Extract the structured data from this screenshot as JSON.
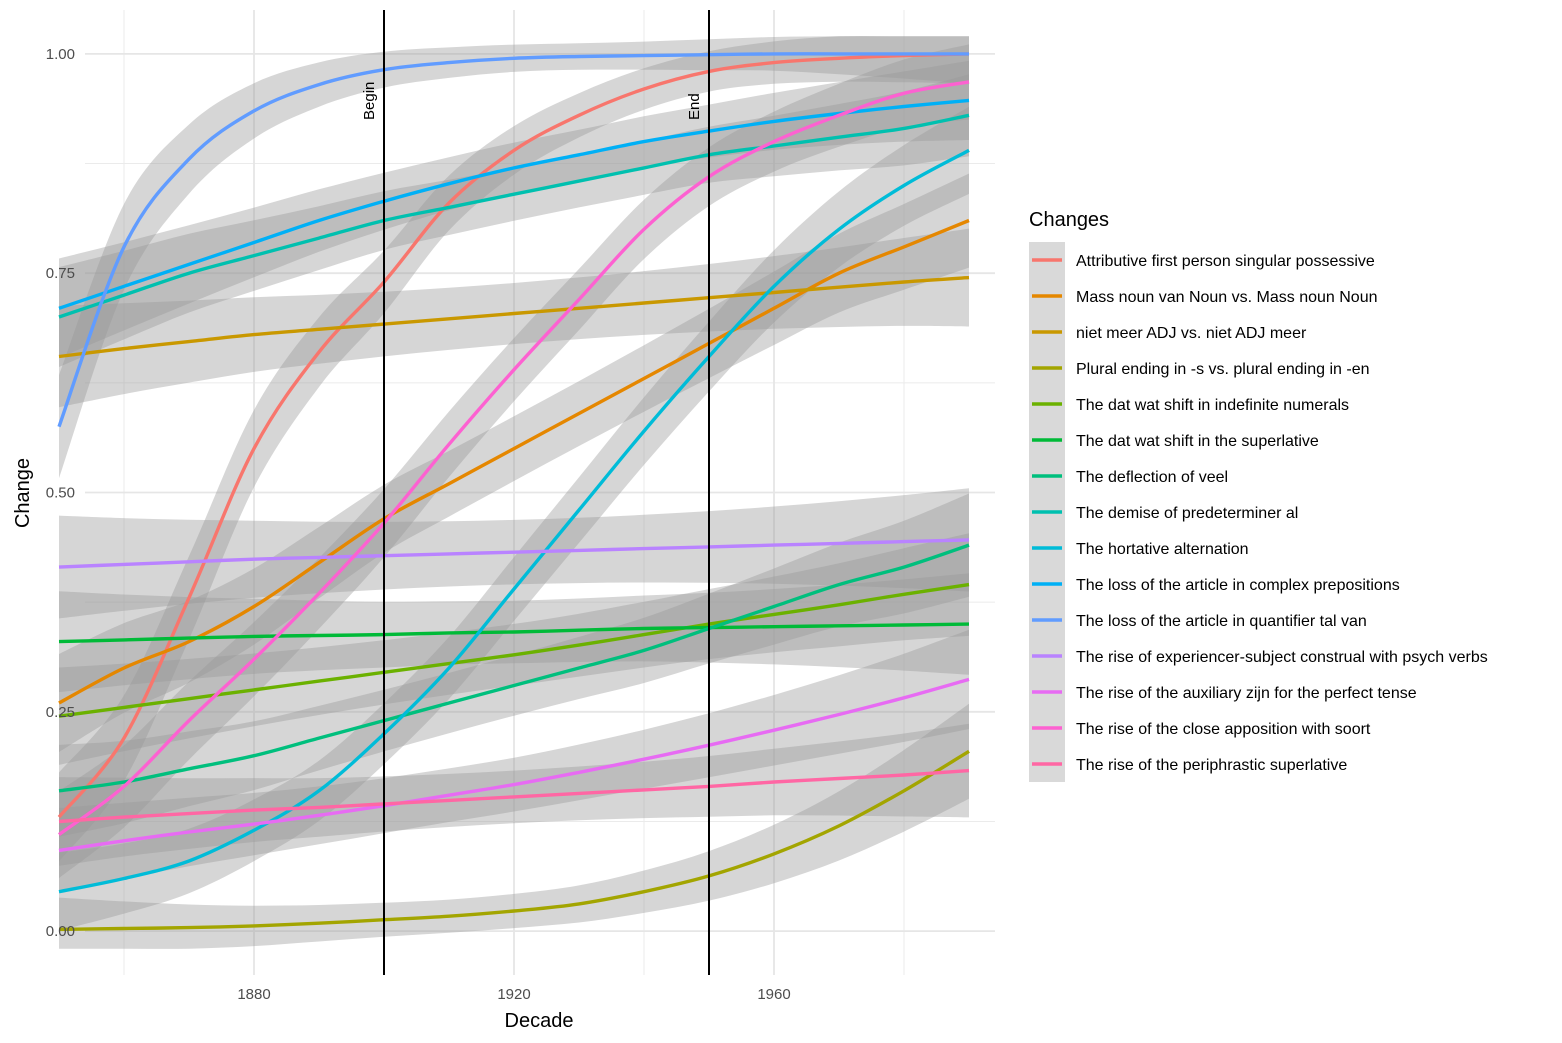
{
  "chart_data": {
    "type": "line",
    "xlabel": "Decade",
    "ylabel": "Change",
    "xlim": [
      1854,
      1994
    ],
    "ylim": [
      -0.05,
      1.05
    ],
    "x_ticks": [
      1880,
      1920,
      1960
    ],
    "x_tick_labels": [
      "1880",
      "1920",
      "1960"
    ],
    "y_ticks": [
      0,
      0.25,
      0.5,
      0.75,
      1.0
    ],
    "y_tick_labels": [
      "0.00",
      "0.25",
      "0.50",
      "0.75",
      "1.00"
    ],
    "grid": true,
    "legend_title": "Changes",
    "legend_position": "right",
    "vlines": [
      {
        "x": 1900,
        "label": "Begin"
      },
      {
        "x": 1950,
        "label": "End"
      }
    ],
    "x": [
      1850,
      1860,
      1870,
      1880,
      1890,
      1900,
      1910,
      1920,
      1930,
      1940,
      1950,
      1960,
      1970,
      1980,
      1990
    ],
    "series": [
      {
        "name": "Attributive first person singular possessive",
        "color": "#F8766D",
        "values": [
          0.13,
          0.22,
          0.38,
          0.55,
          0.66,
          0.74,
          0.83,
          0.89,
          0.93,
          0.96,
          0.98,
          0.99,
          0.995,
          0.998,
          1.0
        ]
      },
      {
        "name": "Mass noun van Noun vs. Mass noun Noun",
        "color": "#E58700",
        "values": [
          0.26,
          0.3,
          0.33,
          0.37,
          0.42,
          0.47,
          0.51,
          0.55,
          0.59,
          0.63,
          0.67,
          0.71,
          0.75,
          0.78,
          0.81
        ]
      },
      {
        "name": "niet meer ADJ vs. niet ADJ meer",
        "color": "#C99800",
        "values": [
          0.655,
          0.664,
          0.672,
          0.68,
          0.686,
          0.692,
          0.698,
          0.704,
          0.71,
          0.716,
          0.722,
          0.728,
          0.734,
          0.74,
          0.745
        ]
      },
      {
        "name": "Plural ending in -s vs. plural ending in -en",
        "color": "#A3A500",
        "values": [
          0.002,
          0.003,
          0.004,
          0.006,
          0.009,
          0.013,
          0.017,
          0.023,
          0.031,
          0.045,
          0.063,
          0.088,
          0.12,
          0.16,
          0.205
        ]
      },
      {
        "name": "The dat wat shift in indefinite numerals",
        "color": "#6BB100",
        "values": [
          0.245,
          0.255,
          0.265,
          0.275,
          0.285,
          0.295,
          0.305,
          0.315,
          0.326,
          0.338,
          0.35,
          0.361,
          0.372,
          0.384,
          0.395
        ]
      },
      {
        "name": "The dat wat shift in the superlative",
        "color": "#00BA38",
        "values": [
          0.33,
          0.332,
          0.334,
          0.336,
          0.337,
          0.338,
          0.34,
          0.341,
          0.343,
          0.345,
          0.346,
          0.347,
          0.348,
          0.349,
          0.35
        ]
      },
      {
        "name": "The deflection of veel",
        "color": "#00BF7D",
        "values": [
          0.16,
          0.17,
          0.185,
          0.2,
          0.22,
          0.24,
          0.26,
          0.28,
          0.3,
          0.32,
          0.345,
          0.37,
          0.395,
          0.415,
          0.44
        ]
      },
      {
        "name": "The demise of predeterminer al",
        "color": "#00C0AF",
        "values": [
          0.7,
          0.725,
          0.75,
          0.77,
          0.79,
          0.81,
          0.825,
          0.84,
          0.855,
          0.87,
          0.885,
          0.895,
          0.905,
          0.915,
          0.93
        ]
      },
      {
        "name": "The hortative alternation",
        "color": "#00BCD8",
        "values": [
          0.045,
          0.06,
          0.08,
          0.115,
          0.16,
          0.225,
          0.3,
          0.39,
          0.48,
          0.57,
          0.655,
          0.735,
          0.8,
          0.85,
          0.89
        ]
      },
      {
        "name": "The loss of the article in complex prepositions",
        "color": "#00B0F6",
        "values": [
          0.71,
          0.735,
          0.76,
          0.785,
          0.81,
          0.832,
          0.852,
          0.87,
          0.885,
          0.9,
          0.912,
          0.923,
          0.932,
          0.94,
          0.947
        ]
      },
      {
        "name": "The loss of the article in quantifier tal van",
        "color": "#619CFF",
        "values": [
          0.575,
          0.78,
          0.88,
          0.935,
          0.965,
          0.982,
          0.99,
          0.995,
          0.997,
          0.998,
          0.999,
          1.0,
          1.0,
          1.0,
          1.0
        ]
      },
      {
        "name": "The rise of experiencer-subject construal with psych verbs",
        "color": "#B983FF",
        "values": [
          0.415,
          0.418,
          0.421,
          0.424,
          0.426,
          0.428,
          0.43,
          0.432,
          0.434,
          0.436,
          0.438,
          0.44,
          0.442,
          0.444,
          0.446
        ]
      },
      {
        "name": "The rise of the auxiliary zijn for the perfect tense",
        "color": "#E76BF3",
        "values": [
          0.092,
          0.103,
          0.113,
          0.122,
          0.132,
          0.143,
          0.155,
          0.167,
          0.181,
          0.196,
          0.212,
          0.229,
          0.247,
          0.266,
          0.287
        ]
      },
      {
        "name": "The rise of the close apposition with soort",
        "color": "#FD61D1",
        "values": [
          0.11,
          0.165,
          0.24,
          0.31,
          0.385,
          0.465,
          0.555,
          0.64,
          0.72,
          0.8,
          0.86,
          0.9,
          0.93,
          0.955,
          0.968
        ]
      },
      {
        "name": "The rise of the periphrastic superlative",
        "color": "#FF67A4",
        "values": [
          0.125,
          0.13,
          0.134,
          0.138,
          0.141,
          0.145,
          0.149,
          0.153,
          0.157,
          0.161,
          0.165,
          0.17,
          0.174,
          0.178,
          0.183
        ]
      }
    ]
  }
}
